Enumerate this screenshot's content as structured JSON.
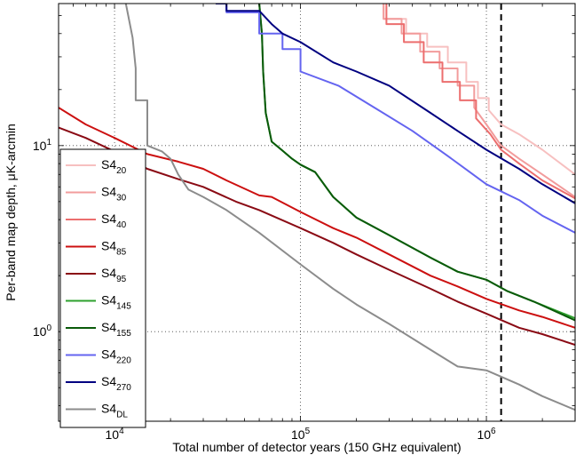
{
  "chart_data": {
    "type": "line",
    "title": "",
    "xlabel": "Total number of detector years (150 GHz equivalent)",
    "ylabel": "Per-band map depth, μK-arcmin",
    "xscale": "log",
    "yscale": "log",
    "xlim": [
      5000,
      3000000
    ],
    "ylim": [
      0.33,
      58
    ],
    "grid": true,
    "legend_position": "lower-left",
    "x_ticks": [
      {
        "value": 10000,
        "base": "10",
        "exp": "4"
      },
      {
        "value": 100000,
        "base": "10",
        "exp": "5"
      },
      {
        "value": 1000000,
        "base": "10",
        "exp": "6"
      }
    ],
    "y_ticks": [
      {
        "value": 1,
        "base": "10",
        "exp": "0"
      },
      {
        "value": 10,
        "base": "10",
        "exp": "1"
      }
    ],
    "reference_line": {
      "x": 1200000,
      "style": "dashed",
      "color": "#000000"
    },
    "series": [
      {
        "name": "S4",
        "sub": "20",
        "color": "#f7c0c0",
        "points": [
          [
            280000,
            58
          ],
          [
            280000,
            48
          ],
          [
            370000,
            48
          ],
          [
            370000,
            40
          ],
          [
            480000,
            40
          ],
          [
            480000,
            34
          ],
          [
            620000,
            34
          ],
          [
            620000,
            28
          ],
          [
            780000,
            28
          ],
          [
            780000,
            22
          ],
          [
            900000,
            22
          ],
          [
            900000,
            18
          ],
          [
            1030000,
            18
          ],
          [
            1030000,
            15.5
          ],
          [
            1200000,
            13
          ],
          [
            1500000,
            11.5
          ],
          [
            2000000,
            9.5
          ],
          [
            3000000,
            7
          ]
        ]
      },
      {
        "name": "S4",
        "sub": "30",
        "color": "#f29c9c",
        "points": [
          [
            280000,
            58
          ],
          [
            280000,
            48
          ],
          [
            350000,
            48
          ],
          [
            350000,
            40
          ],
          [
            440000,
            40
          ],
          [
            440000,
            32
          ],
          [
            560000,
            32
          ],
          [
            560000,
            26
          ],
          [
            700000,
            26
          ],
          [
            700000,
            21
          ],
          [
            860000,
            21
          ],
          [
            860000,
            16
          ],
          [
            1000000,
            13
          ],
          [
            1200000,
            10
          ],
          [
            1500000,
            8.5
          ],
          [
            2000000,
            7
          ],
          [
            3000000,
            5.3
          ]
        ]
      },
      {
        "name": "S4",
        "sub": "40",
        "color": "#ec6e6e",
        "points": [
          [
            290000,
            58
          ],
          [
            290000,
            45
          ],
          [
            360000,
            45
          ],
          [
            360000,
            36
          ],
          [
            460000,
            36
          ],
          [
            460000,
            28
          ],
          [
            580000,
            28
          ],
          [
            580000,
            22
          ],
          [
            720000,
            22
          ],
          [
            720000,
            17.5
          ],
          [
            880000,
            17.5
          ],
          [
            880000,
            14
          ],
          [
            1050000,
            11.5
          ],
          [
            1200000,
            9.5
          ],
          [
            1500000,
            8
          ],
          [
            2000000,
            6.5
          ],
          [
            3000000,
            5.2
          ]
        ]
      },
      {
        "name": "S4",
        "sub": "85",
        "color": "#cc1010",
        "points": [
          [
            5000,
            16
          ],
          [
            7000,
            13
          ],
          [
            10000,
            11
          ],
          [
            15000,
            9
          ],
          [
            22000,
            8.2
          ],
          [
            30000,
            7.5
          ],
          [
            40000,
            6.5
          ],
          [
            60000,
            5.4
          ],
          [
            70000,
            5.3
          ],
          [
            100000,
            4.4
          ],
          [
            150000,
            3.6
          ],
          [
            200000,
            3.2
          ],
          [
            300000,
            2.6
          ],
          [
            500000,
            2.0
          ],
          [
            700000,
            1.75
          ],
          [
            1000000,
            1.5
          ],
          [
            1500000,
            1.3
          ],
          [
            2000000,
            1.2
          ],
          [
            3000000,
            1.05
          ]
        ]
      },
      {
        "name": "S4",
        "sub": "95",
        "color": "#8a0a14",
        "points": [
          [
            5000,
            12.5
          ],
          [
            7000,
            11
          ],
          [
            10000,
            9.3
          ],
          [
            15000,
            7.5
          ],
          [
            22000,
            6.6
          ],
          [
            30000,
            6.0
          ],
          [
            45000,
            5.0
          ],
          [
            60000,
            4.5
          ],
          [
            100000,
            3.6
          ],
          [
            150000,
            3.0
          ],
          [
            200000,
            2.6
          ],
          [
            300000,
            2.15
          ],
          [
            500000,
            1.7
          ],
          [
            700000,
            1.45
          ],
          [
            1000000,
            1.25
          ],
          [
            1500000,
            1.05
          ],
          [
            2000000,
            0.97
          ],
          [
            3000000,
            0.85
          ]
        ]
      },
      {
        "name": "S4",
        "sub": "145",
        "color": "#2ea12e",
        "points": [
          [
            60000,
            58
          ],
          [
            62000,
            40
          ],
          [
            63000,
            25
          ],
          [
            65000,
            15
          ],
          [
            70000,
            10.5
          ],
          [
            80000,
            9.4
          ],
          [
            90000,
            8.5
          ],
          [
            100000,
            7.9
          ],
          [
            120000,
            7.2
          ],
          [
            150000,
            5.3
          ],
          [
            200000,
            4.1
          ],
          [
            300000,
            3.3
          ],
          [
            500000,
            2.5
          ],
          [
            700000,
            2.1
          ],
          [
            1000000,
            1.9
          ],
          [
            1300000,
            1.65
          ],
          [
            1800000,
            1.45
          ],
          [
            3000000,
            1.18
          ]
        ]
      },
      {
        "name": "S4",
        "sub": "155",
        "color": "#0a5a0a",
        "points": [
          [
            60000,
            58
          ],
          [
            62000,
            40
          ],
          [
            63000,
            25
          ],
          [
            65000,
            15
          ],
          [
            70000,
            10.5
          ],
          [
            80000,
            9.4
          ],
          [
            90000,
            8.5
          ],
          [
            100000,
            7.9
          ],
          [
            120000,
            7.2
          ],
          [
            150000,
            5.3
          ],
          [
            200000,
            4.1
          ],
          [
            300000,
            3.3
          ],
          [
            500000,
            2.5
          ],
          [
            700000,
            2.1
          ],
          [
            1000000,
            1.9
          ],
          [
            1300000,
            1.65
          ],
          [
            1800000,
            1.45
          ],
          [
            3000000,
            1.15
          ]
        ]
      },
      {
        "name": "S4",
        "sub": "220",
        "color": "#6464f0",
        "points": [
          [
            40000,
            58
          ],
          [
            40000,
            52
          ],
          [
            60000,
            52
          ],
          [
            60000,
            40
          ],
          [
            80000,
            40
          ],
          [
            80000,
            33
          ],
          [
            100000,
            33
          ],
          [
            100000,
            25
          ],
          [
            160000,
            21
          ],
          [
            250000,
            16
          ],
          [
            400000,
            12
          ],
          [
            600000,
            9
          ],
          [
            800000,
            7.3
          ],
          [
            1000000,
            6.2
          ],
          [
            1500000,
            5.1
          ],
          [
            2000000,
            4.2
          ],
          [
            3000000,
            3.4
          ]
        ]
      },
      {
        "name": "S4",
        "sub": "270",
        "color": "#000080",
        "points": [
          [
            35000,
            58
          ],
          [
            40000,
            58
          ],
          [
            40000,
            53
          ],
          [
            60000,
            53
          ],
          [
            70000,
            45
          ],
          [
            80000,
            40
          ],
          [
            100000,
            36
          ],
          [
            150000,
            28
          ],
          [
            200000,
            25
          ],
          [
            300000,
            21
          ],
          [
            500000,
            15
          ],
          [
            700000,
            12
          ],
          [
            1000000,
            9.5
          ],
          [
            1500000,
            7.5
          ],
          [
            2000000,
            6.2
          ],
          [
            3000000,
            4.9
          ]
        ]
      },
      {
        "name": "S4",
        "sub": "DL",
        "color": "#8c8c8c",
        "points": [
          [
            11500,
            58
          ],
          [
            12500,
            38
          ],
          [
            13000,
            26
          ],
          [
            13000,
            17.5
          ],
          [
            15000,
            17.5
          ],
          [
            15000,
            10
          ],
          [
            18000,
            9.3
          ],
          [
            20000,
            8.5
          ],
          [
            22000,
            7
          ],
          [
            25000,
            5.8
          ],
          [
            30000,
            5.3
          ],
          [
            40000,
            4.5
          ],
          [
            60000,
            3.4
          ],
          [
            100000,
            2.3
          ],
          [
            150000,
            1.7
          ],
          [
            200000,
            1.4
          ],
          [
            300000,
            1.1
          ],
          [
            500000,
            0.8
          ],
          [
            700000,
            0.65
          ],
          [
            1000000,
            0.62
          ],
          [
            1500000,
            0.52
          ],
          [
            2000000,
            0.45
          ],
          [
            3000000,
            0.38
          ]
        ]
      }
    ]
  }
}
